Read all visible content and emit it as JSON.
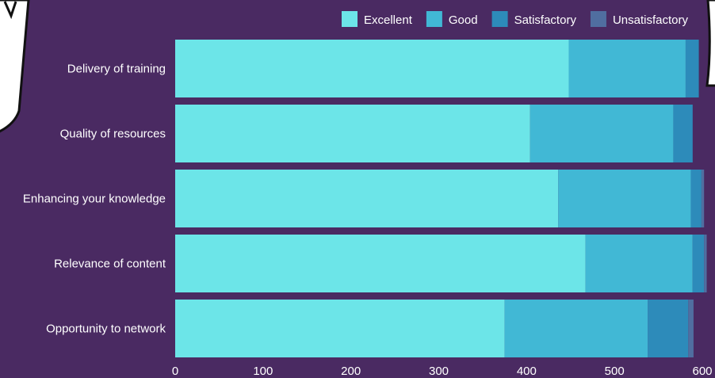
{
  "chart_data": {
    "type": "bar",
    "orientation": "horizontal",
    "stacked": true,
    "categories": [
      "Delivery of training",
      "Quality of resources",
      "Enhancing your knowledge",
      "Relevance of content",
      "Opportunity to network"
    ],
    "series": [
      {
        "name": "Excellent",
        "color": "#6ce5e8",
        "values": [
          448,
          404,
          436,
          467,
          375
        ]
      },
      {
        "name": "Good",
        "color": "#41b8d5",
        "values": [
          133,
          163,
          151,
          122,
          163
        ]
      },
      {
        "name": "Satisfactory",
        "color": "#2d8bba",
        "values": [
          15,
          22,
          12,
          13,
          46
        ]
      },
      {
        "name": "Unsatisfactory",
        "color": "#506ea0",
        "values": [
          0,
          0,
          3,
          3,
          6
        ]
      }
    ],
    "x_ticks": [
      "0",
      "100",
      "200",
      "300",
      "400",
      "500",
      "600"
    ],
    "xlim": [
      0,
      600
    ],
    "title": "",
    "xlabel": "",
    "ylabel": "",
    "legend_position": "top-right",
    "grid": false,
    "background": "#4a2a62"
  }
}
